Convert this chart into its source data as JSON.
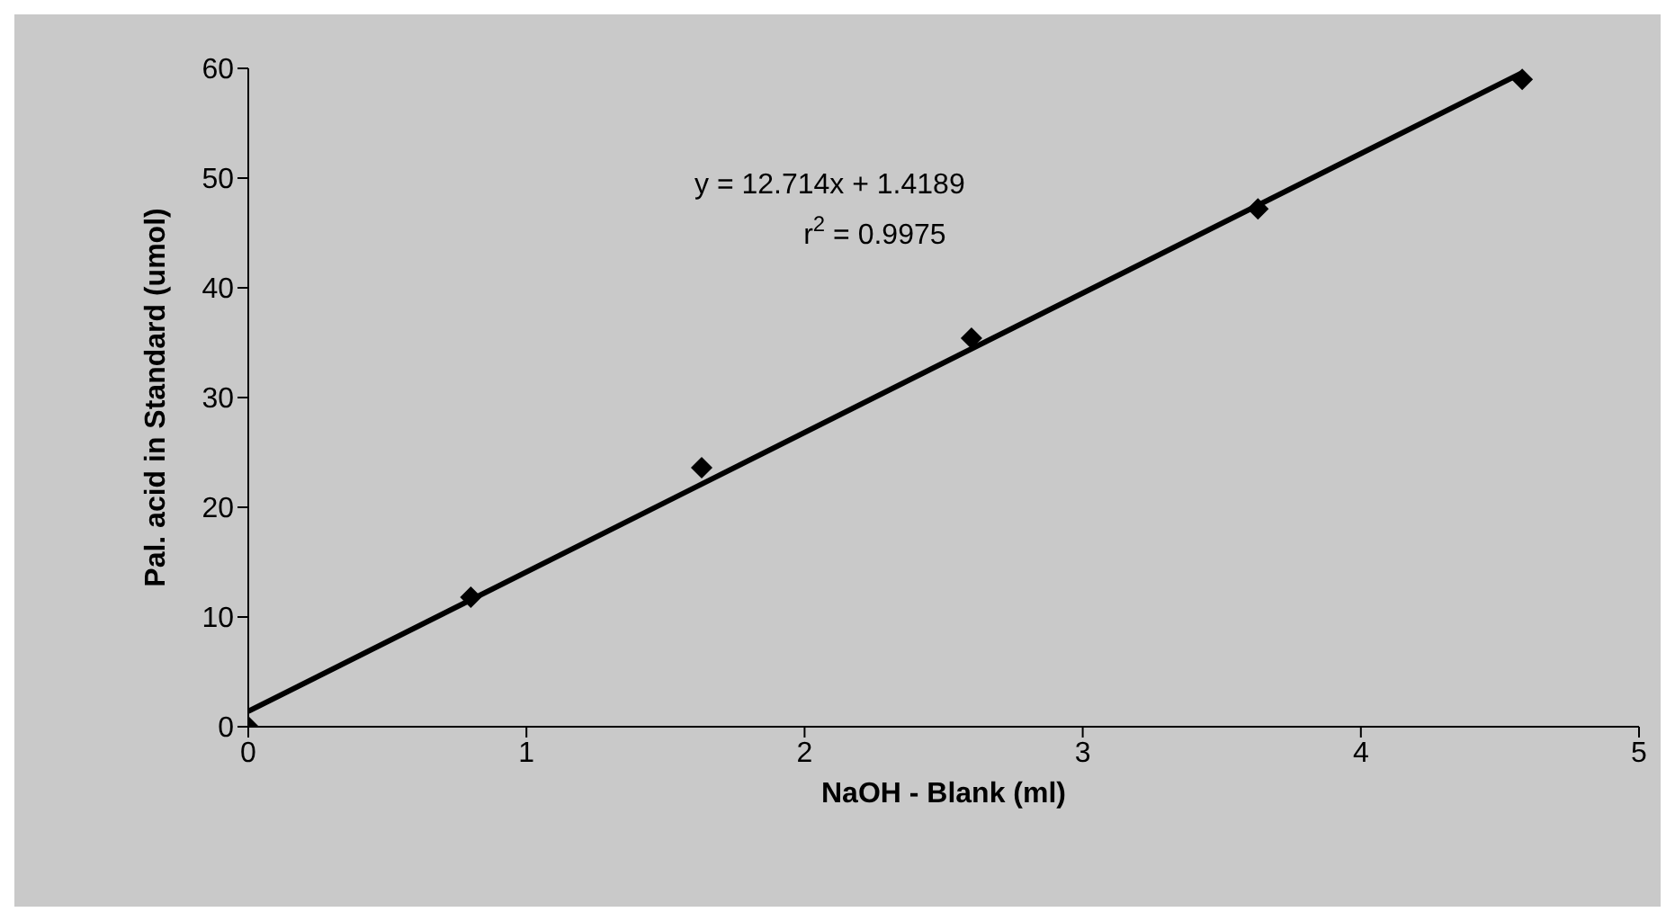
{
  "chart_data": {
    "type": "scatter",
    "xlabel": "NaOH - Blank (ml)",
    "ylabel": "Pal. acid in Standard (umol)",
    "series": [
      {
        "color": "#000000",
        "marker": "diamond",
        "x": [
          0,
          0.8,
          1.63,
          2.6,
          3.63,
          4.58
        ],
        "values": [
          0,
          11.8,
          23.6,
          35.4,
          47.2,
          59
        ]
      },
      {
        "type": "line",
        "color": "#000000",
        "marker": "none",
        "x": [
          0,
          4.58
        ],
        "values": [
          1.4,
          59.6
        ]
      }
    ],
    "annotations": [
      "y = 12.714x + 1.4189",
      "r$^{2}$ = 0.9975"
    ],
    "xlim": [
      0,
      5
    ],
    "xticks": [
      0,
      1,
      2,
      3,
      4,
      5
    ],
    "ylim": [
      0,
      60
    ],
    "yticks": [
      0,
      10,
      20,
      30,
      40,
      50,
      60
    ],
    "grid": false
  }
}
